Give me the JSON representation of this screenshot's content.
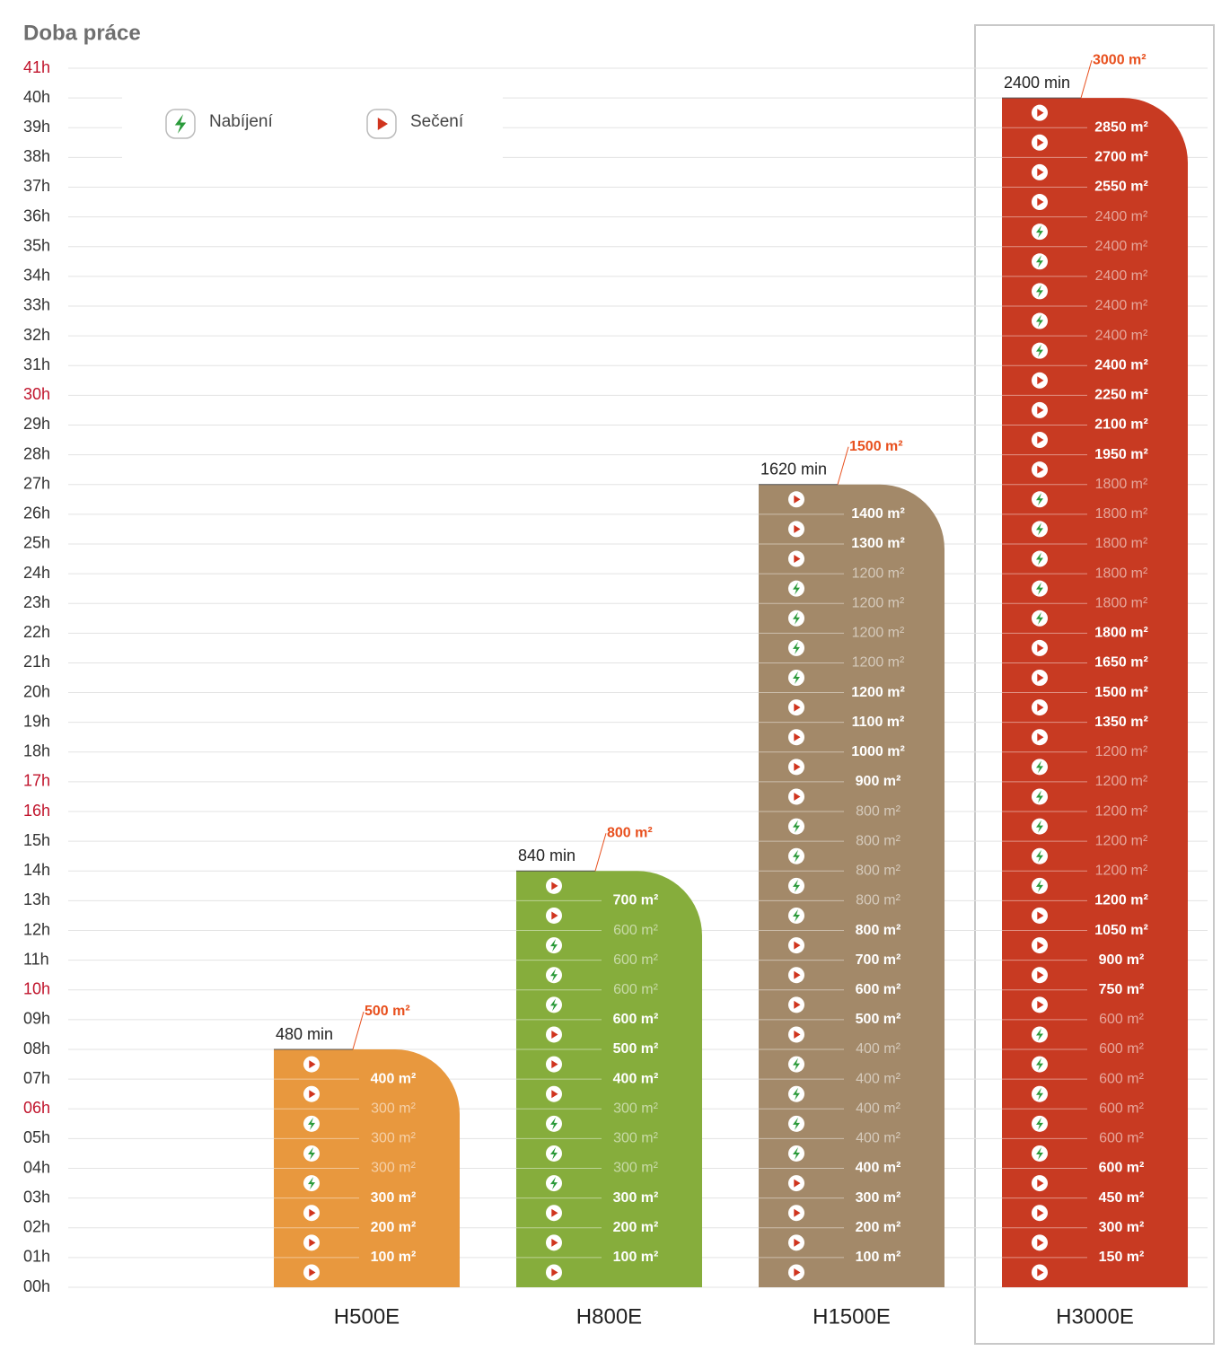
{
  "chart_data": {
    "type": "bar",
    "title": "Doba práce",
    "categories": [
      "H500E",
      "H800E",
      "H1500E",
      "H3000E"
    ],
    "values": [
      8,
      14,
      27,
      40
    ],
    "value_labels": [
      "480 min",
      "840 min",
      "1620 min",
      "2400 min"
    ],
    "colors": [
      "#e8983e",
      "#86ad3c",
      "#a38969",
      "#c83a22"
    ],
    "totals": [
      "500 m²",
      "800 m²",
      "1500 m²",
      "3000 m²"
    ],
    "rows": [
      [
        "play",
        "play",
        "play",
        "charge",
        "charge",
        "charge",
        "play",
        "play"
      ],
      [
        "play",
        "play",
        "play",
        "charge",
        "charge",
        "charge",
        "play",
        "play",
        "play",
        "charge",
        "charge",
        "charge",
        "play",
        "play"
      ],
      [
        "play",
        "play",
        "play",
        "play",
        "charge",
        "charge",
        "charge",
        "charge",
        "play",
        "play",
        "play",
        "play",
        "charge",
        "charge",
        "charge",
        "charge",
        "play",
        "play",
        "play",
        "play",
        "charge",
        "charge",
        "charge",
        "charge",
        "play",
        "play",
        "play"
      ],
      [
        "play",
        "play",
        "play",
        "play",
        "charge",
        "charge",
        "charge",
        "charge",
        "charge",
        "play",
        "play",
        "play",
        "play",
        "charge",
        "charge",
        "charge",
        "charge",
        "charge",
        "play",
        "play",
        "play",
        "play",
        "charge",
        "charge",
        "charge",
        "charge",
        "charge",
        "play",
        "play",
        "play",
        "play",
        "charge",
        "charge",
        "charge",
        "charge",
        "charge",
        "play",
        "play",
        "play",
        "play"
      ]
    ],
    "area_labels": [
      [
        "100 m²",
        "200 m²",
        "300 m²",
        "300 m²",
        "300 m²",
        "300 m²",
        "400 m²"
      ],
      [
        "100 m²",
        "200 m²",
        "300 m²",
        "300 m²",
        "300 m²",
        "300 m²",
        "400 m²",
        "500 m²",
        "600 m²",
        "600 m²",
        "600 m²",
        "600 m²",
        "700 m²"
      ],
      [
        "100 m²",
        "200 m²",
        "300 m²",
        "400 m²",
        "400 m²",
        "400 m²",
        "400 m²",
        "400 m²",
        "500 m²",
        "600 m²",
        "700 m²",
        "800 m²",
        "800 m²",
        "800 m²",
        "800 m²",
        "800 m²",
        "900 m²",
        "1000 m²",
        "1100 m²",
        "1200 m²",
        "1200 m²",
        "1200 m²",
        "1200 m²",
        "1200 m²",
        "1300 m²",
        "1400 m²"
      ],
      [
        "150 m²",
        "300 m²",
        "450 m²",
        "600 m²",
        "600 m²",
        "600 m²",
        "600 m²",
        "600 m²",
        "600 m²",
        "750 m²",
        "900 m²",
        "1050 m²",
        "1200 m²",
        "1200 m²",
        "1200 m²",
        "1200 m²",
        "1200 m²",
        "1200 m²",
        "1350 m²",
        "1500 m²",
        "1650 m²",
        "1800 m²",
        "1800 m²",
        "1800 m²",
        "1800 m²",
        "1800 m²",
        "1800 m²",
        "1950 m²",
        "2100 m²",
        "2250 m²",
        "2400 m²",
        "2400 m²",
        "2400 m²",
        "2400 m²",
        "2400 m²",
        "2400 m²",
        "2550 m²",
        "2700 m²",
        "2850 m²"
      ]
    ],
    "legend": [
      {
        "icon": "charge",
        "label": "Nabíjení"
      },
      {
        "icon": "play",
        "label": "Sečení"
      }
    ],
    "selected": "H3000E",
    "ylim": [
      0,
      41
    ],
    "yticks": [
      {
        "value": 0,
        "label": "00h"
      },
      {
        "value": 1,
        "label": "01h"
      },
      {
        "value": 2,
        "label": "02h"
      },
      {
        "value": 3,
        "label": "03h"
      },
      {
        "value": 4,
        "label": "04h"
      },
      {
        "value": 5,
        "label": "05h"
      },
      {
        "value": 6,
        "label": "06h"
      },
      {
        "value": 7,
        "label": "07h"
      },
      {
        "value": 8,
        "label": "08h"
      },
      {
        "value": 9,
        "label": "09h"
      },
      {
        "value": 10,
        "label": "10h"
      },
      {
        "value": 11,
        "label": "11h"
      },
      {
        "value": 12,
        "label": "12h"
      },
      {
        "value": 13,
        "label": "13h"
      },
      {
        "value": 14,
        "label": "14h"
      },
      {
        "value": 15,
        "label": "15h"
      },
      {
        "value": 16,
        "label": "16h"
      },
      {
        "value": 17,
        "label": "17h"
      },
      {
        "value": 18,
        "label": "18h"
      },
      {
        "value": 19,
        "label": "19h"
      },
      {
        "value": 20,
        "label": "20h"
      },
      {
        "value": 21,
        "label": "21h"
      },
      {
        "value": 22,
        "label": "22h"
      },
      {
        "value": 23,
        "label": "23h"
      },
      {
        "value": 24,
        "label": "24h"
      },
      {
        "value": 25,
        "label": "25h"
      },
      {
        "value": 26,
        "label": "26h"
      },
      {
        "value": 27,
        "label": "27h"
      },
      {
        "value": 28,
        "label": "28h"
      },
      {
        "value": 29,
        "label": "29h"
      },
      {
        "value": 30,
        "label": "30h"
      },
      {
        "value": 31,
        "label": "31h"
      },
      {
        "value": 32,
        "label": "32h"
      },
      {
        "value": 33,
        "label": "33h"
      },
      {
        "value": 34,
        "label": "34h"
      },
      {
        "value": 35,
        "label": "35h"
      },
      {
        "value": 36,
        "label": "36h"
      },
      {
        "value": 37,
        "label": "37h"
      },
      {
        "value": 38,
        "label": "38h"
      },
      {
        "value": 39,
        "label": "39h"
      },
      {
        "value": 40,
        "label": "40h"
      },
      {
        "value": 41,
        "label": "41h"
      }
    ],
    "highlight_yticks": [
      6,
      10,
      16,
      17,
      30,
      41
    ],
    "grid": true
  }
}
